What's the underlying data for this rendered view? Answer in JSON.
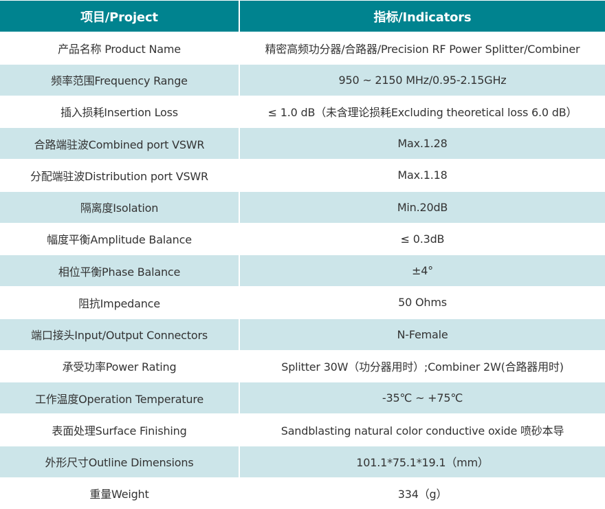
{
  "header": {
    "col1": "项目/Project",
    "col2": "指标/Indicators"
  },
  "colors": {
    "header_bg": "#00838f",
    "alt_row_bg": "#cce5e9",
    "text": "#333333"
  },
  "rows": [
    {
      "label": "产品名称 Product Name",
      "value": "精密高频功分器/合路器/Precision RF Power Splitter/Combiner"
    },
    {
      "label": "频率范围Frequency Range",
      "value": "950 ~ 2150 MHz/0.95-2.15GHz"
    },
    {
      "label": "插入损耗Insertion Loss",
      "value": "≤ 1.0 dB（未含理论损耗Excluding theoretical loss 6.0 dB）"
    },
    {
      "label": "合路端驻波Combined port VSWR",
      "value": "Max.1.28"
    },
    {
      "label": "分配端驻波Distribution port VSWR",
      "value": "Max.1.18"
    },
    {
      "label": "隔离度Isolation",
      "value": "Min.20dB"
    },
    {
      "label": "幅度平衡Amplitude Balance",
      "value": "≤ 0.3dB"
    },
    {
      "label": "相位平衡Phase Balance",
      "value": "±4°"
    },
    {
      "label": "阻抗Impedance",
      "value": "50 Ohms"
    },
    {
      "label": "端口接头Input/Output Connectors",
      "value": "N-Female"
    },
    {
      "label": "承受功率Power Rating",
      "value": "Splitter 30W（功分器用时）;Combiner 2W(合路器用时)"
    },
    {
      "label": "工作温度Operation Temperature",
      "value": "-35℃ ~ +75℃"
    },
    {
      "label": "表面处理Surface Finishing",
      "value": "Sandblasting natural color conductive oxide 喷砂本导"
    },
    {
      "label": "外形尺寸Outline Dimensions",
      "value": "101.1*75.1*19.1（mm）"
    },
    {
      "label": "重量Weight",
      "value": "334（g）"
    }
  ]
}
